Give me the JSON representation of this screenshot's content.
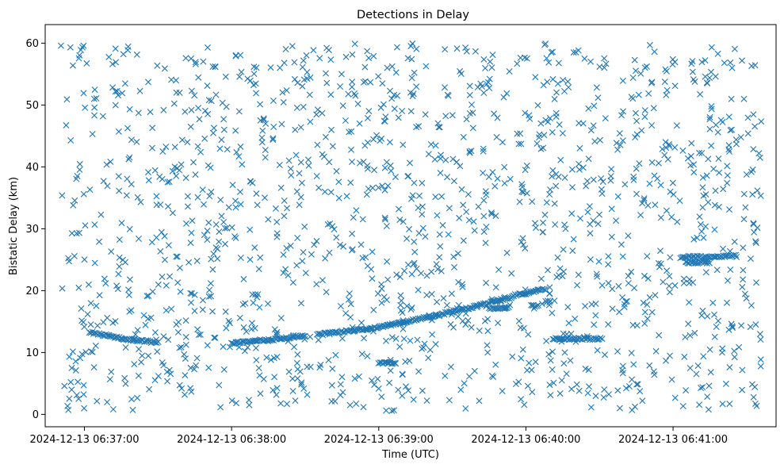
{
  "chart_data": {
    "type": "scatter",
    "title": "Detections in Delay",
    "xlabel": "Time (UTC)",
    "ylabel": "Bistatic Delay (km)",
    "marker": "x",
    "color": "#1f77b4",
    "grid": false,
    "x_unit": "seconds after 2024-12-13 06:36:00 UTC",
    "xlim": [
      44,
      342
    ],
    "ylim": [
      -2,
      63
    ],
    "x_ticks": [
      {
        "value": 60,
        "label": "2024-12-13 06:37:00"
      },
      {
        "value": 120,
        "label": "2024-12-13 06:38:00"
      },
      {
        "value": 180,
        "label": "2024-12-13 06:39:00"
      },
      {
        "value": 240,
        "label": "2024-12-13 06:40:00"
      },
      {
        "value": 300,
        "label": "2024-12-13 06:41:00"
      }
    ],
    "y_ticks": [
      {
        "value": 0,
        "label": "0"
      },
      {
        "value": 10,
        "label": "10"
      },
      {
        "value": 20,
        "label": "20"
      },
      {
        "value": 30,
        "label": "30"
      },
      {
        "value": 40,
        "label": "40"
      },
      {
        "value": 50,
        "label": "50"
      },
      {
        "value": 60,
        "label": "60"
      }
    ],
    "x_range": [
      50,
      336
    ],
    "y_range": [
      0.5,
      60
    ],
    "tracks": [
      {
        "x": [
          62,
          70,
          75,
          80,
          85,
          90
        ],
        "y": [
          13.3,
          12.7,
          12.3,
          12.0,
          11.8,
          11.6
        ]
      },
      {
        "x": [
          120,
          125,
          130,
          135,
          140,
          145,
          150
        ],
        "y": [
          11.5,
          11.7,
          11.9,
          12.0,
          12.3,
          12.5,
          12.8
        ]
      },
      {
        "x": [
          155,
          160,
          170,
          180,
          190,
          200,
          210,
          220,
          230,
          235
        ],
        "y": [
          12.9,
          13.1,
          13.6,
          14.1,
          14.9,
          15.7,
          16.6,
          17.5,
          18.5,
          19.0
        ]
      },
      {
        "x": [
          235,
          240,
          244,
          248
        ],
        "y": [
          19.2,
          19.6,
          20.0,
          20.2
        ]
      },
      {
        "x": [
          225,
          233
        ],
        "y": [
          17.2,
          17.2
        ]
      },
      {
        "x": [
          242,
          245
        ],
        "y": [
          17.5,
          17.5
        ]
      },
      {
        "x": [
          248,
          250
        ],
        "y": [
          18.3,
          18.2
        ]
      },
      {
        "x": [
          180,
          187
        ],
        "y": [
          8.3,
          8.3
        ]
      },
      {
        "x": [
          251,
          271
        ],
        "y": [
          12.2,
          12.2
        ]
      },
      {
        "x": [
          303,
          326
        ],
        "y": [
          25.4,
          25.6
        ]
      },
      {
        "x": [
          305,
          315
        ],
        "y": [
          24.5,
          24.6
        ]
      }
    ]
  }
}
